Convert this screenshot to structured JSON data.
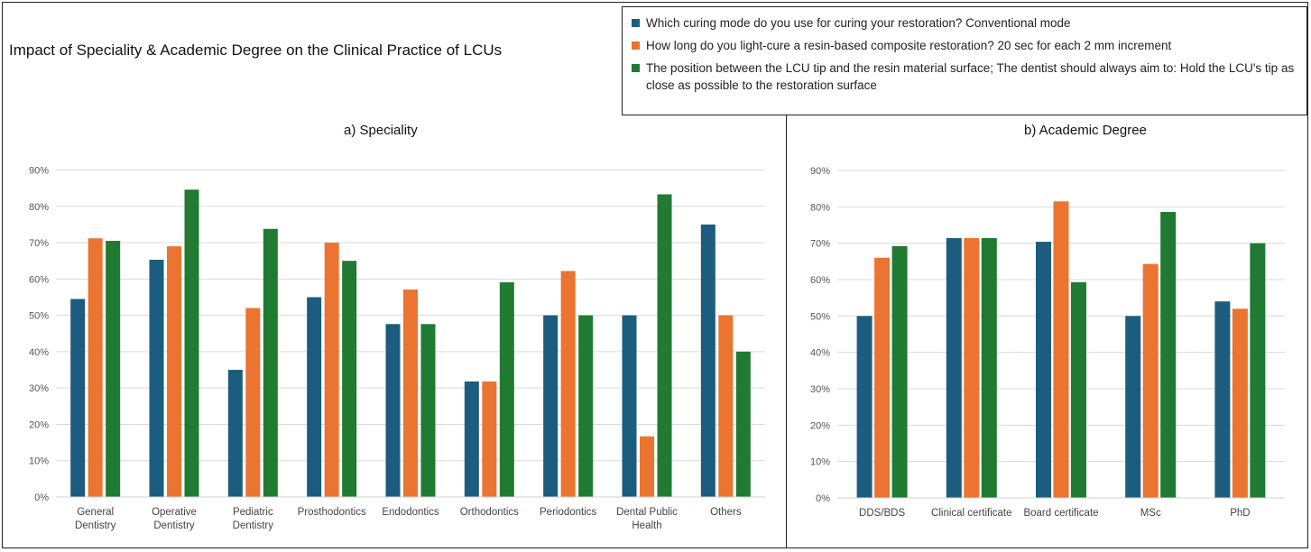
{
  "title": "Impact of Speciality & Academic Degree on the Clinical Practice of LCUs",
  "colors": {
    "blue": "#1c5d7f",
    "orange": "#ea7430",
    "green": "#207a32",
    "grid": "#d9d9d9"
  },
  "legend": [
    "Which curing mode do you use for curing your restoration? Conventional mode",
    "How long do you light-cure a resin-based composite restoration? 20 sec for each 2 mm increment",
    "The position between the LCU tip and the resin material surface; The dentist should always aim to: Hold the LCU's tip as close as possible to the restoration surface"
  ],
  "chart_data": [
    {
      "type": "bar",
      "title": "a) Speciality",
      "categories": [
        [
          "General",
          "Dentistry"
        ],
        [
          "Operative",
          "Dentistry"
        ],
        [
          "Pediatric",
          "Dentistry"
        ],
        [
          "Prosthodontics"
        ],
        [
          "Endodontics"
        ],
        [
          "Orthodontics"
        ],
        [
          "Periodontics"
        ],
        [
          "Dental Public",
          "Health"
        ],
        [
          "Others"
        ]
      ],
      "series": [
        {
          "name": "Which curing mode do you use for curing your restoration? Conventional mode",
          "values": [
            54.5,
            65.3,
            35,
            55,
            47.6,
            31.8,
            50,
            50,
            75
          ]
        },
        {
          "name": "How long do you light-cure a resin-based composite restoration? 20 sec for each 2 mm increment",
          "values": [
            71.2,
            69,
            52,
            70,
            57.1,
            31.8,
            62.2,
            16.7,
            50
          ]
        },
        {
          "name": "The position between the LCU tip and the resin material surface; The dentist should always aim to: Hold the LCU's tip as close as possible to the restoration surface",
          "values": [
            70.5,
            84.6,
            73.8,
            65,
            47.6,
            59.1,
            50,
            83.3,
            40
          ]
        }
      ],
      "yticks": [
        "0%",
        "10%",
        "20%",
        "30%",
        "40%",
        "50%",
        "60%",
        "70%",
        "80%",
        "90%"
      ],
      "ylim": [
        0,
        90
      ],
      "grid": true
    },
    {
      "type": "bar",
      "title": "b) Academic Degree",
      "categories": [
        [
          "DDS/BDS"
        ],
        [
          "Clinical certificate"
        ],
        [
          "Board certificate"
        ],
        [
          "MSc"
        ],
        [
          "PhD"
        ]
      ],
      "series": [
        {
          "name": "Which curing mode do you use for curing your restoration? Conventional mode",
          "values": [
            50,
            71.4,
            70.4,
            50,
            54
          ]
        },
        {
          "name": "How long do you light-cure a resin-based composite restoration? 20 sec for each 2 mm increment",
          "values": [
            66,
            71.4,
            81.5,
            64.3,
            52
          ]
        },
        {
          "name": "The position between the LCU tip and the resin material surface; The dentist should always aim to: Hold the LCU's tip as close as possible to the restoration surface",
          "values": [
            69.2,
            71.4,
            59.3,
            78.6,
            70
          ]
        }
      ],
      "yticks": [
        "0%",
        "10%",
        "20%",
        "30%",
        "40%",
        "50%",
        "60%",
        "70%",
        "80%",
        "90%"
      ],
      "ylim": [
        0,
        90
      ],
      "grid": true
    }
  ]
}
